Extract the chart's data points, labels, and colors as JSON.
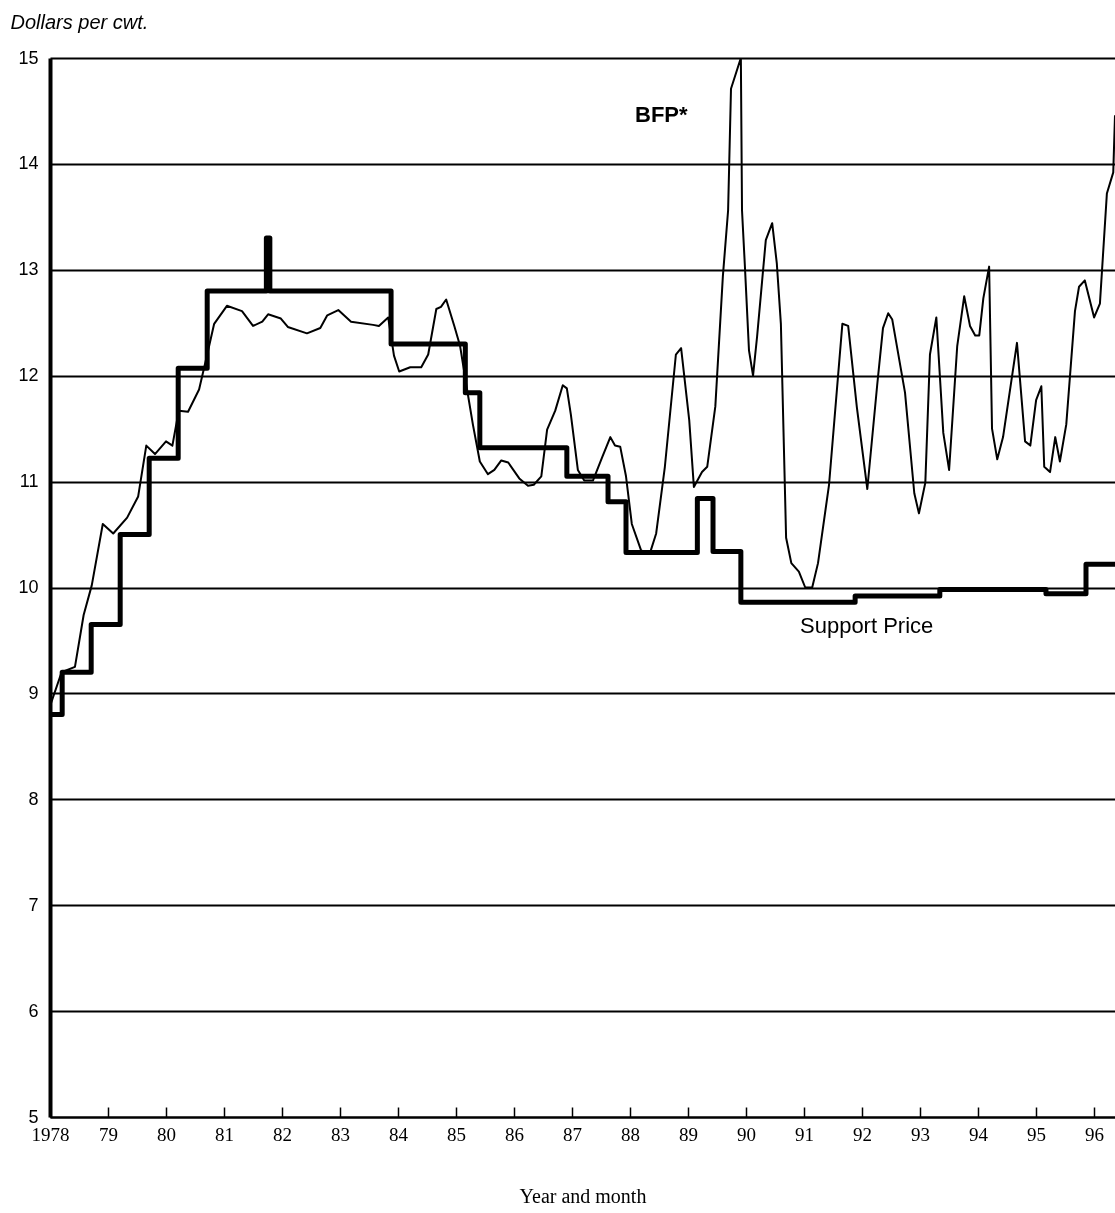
{
  "chart_data": {
    "type": "line",
    "ylabel": "Dollars per cwt.",
    "xlabel": "Year and month",
    "xlim": [
      1978,
      1996.36
    ],
    "xticks": [
      {
        "value": 1978,
        "label": "1978"
      },
      {
        "value": 1979,
        "label": "79"
      },
      {
        "value": 1980,
        "label": "80"
      },
      {
        "value": 1981,
        "label": "81"
      },
      {
        "value": 1982,
        "label": "82"
      },
      {
        "value": 1983,
        "label": "83"
      },
      {
        "value": 1984,
        "label": "84"
      },
      {
        "value": 1985,
        "label": "85"
      },
      {
        "value": 1986,
        "label": "86"
      },
      {
        "value": 1987,
        "label": "87"
      },
      {
        "value": 1988,
        "label": "88"
      },
      {
        "value": 1989,
        "label": "89"
      },
      {
        "value": 1990,
        "label": "90"
      },
      {
        "value": 1991,
        "label": "91"
      },
      {
        "value": 1992,
        "label": "92"
      },
      {
        "value": 1993,
        "label": "93"
      },
      {
        "value": 1994,
        "label": "94"
      },
      {
        "value": 1995,
        "label": "95"
      },
      {
        "value": 1996,
        "label": "96"
      }
    ],
    "ylim": [
      5,
      15
    ],
    "yticks": [
      5,
      6,
      7,
      8,
      9,
      10,
      11,
      12,
      13,
      14,
      15
    ],
    "grid": "y",
    "line_style": "solid",
    "series": [
      {
        "name": "BFP*",
        "type": "line",
        "color": "#000000",
        "x": [
          1978.0,
          1978.2,
          1978.43,
          1978.58,
          1978.72,
          1978.91,
          1979.09,
          1979.33,
          1979.52,
          1979.66,
          1979.81,
          1980.0,
          1980.11,
          1980.22,
          1980.38,
          1980.57,
          1980.71,
          1980.83,
          1981.05,
          1981.31,
          1981.5,
          1981.66,
          1981.76,
          1981.98,
          1982.1,
          1982.43,
          1982.66,
          1982.78,
          1982.97,
          1983.19,
          1983.57,
          1983.67,
          1983.83,
          1983.93,
          1984.02,
          1984.21,
          1984.4,
          1984.52,
          1984.66,
          1984.74,
          1984.83,
          1984.97,
          1985.07,
          1985.19,
          1985.29,
          1985.41,
          1985.55,
          1985.66,
          1985.78,
          1985.9,
          1986.09,
          1986.24,
          1986.34,
          1986.47,
          1986.57,
          1986.71,
          1986.84,
          1986.91,
          1986.98,
          1987.1,
          1987.21,
          1987.36,
          1987.52,
          1987.66,
          1987.74,
          1987.83,
          1987.93,
          1988.03,
          1988.19,
          1988.34,
          1988.45,
          1988.6,
          1988.79,
          1988.88,
          1989.02,
          1989.1,
          1989.24,
          1989.33,
          1989.47,
          1989.6,
          1989.69,
          1989.74,
          1989.91,
          1989.93,
          1989.98,
          1990.05,
          1990.12,
          1990.19,
          1990.34,
          1990.45,
          1990.53,
          1990.6,
          1990.69,
          1990.78,
          1990.91,
          1991.02,
          1991.14,
          1991.24,
          1991.43,
          1991.66,
          1991.76,
          1991.91,
          1992.09,
          1992.26,
          1992.36,
          1992.45,
          1992.52,
          1992.74,
          1992.9,
          1992.98,
          1993.09,
          1993.17,
          1993.28,
          1993.4,
          1993.5,
          1993.64,
          1993.76,
          1993.86,
          1993.95,
          1994.02,
          1994.09,
          1994.19,
          1994.24,
          1994.33,
          1994.43,
          1994.67,
          1994.81,
          1994.9,
          1995.0,
          1995.09,
          1995.14,
          1995.24,
          1995.33,
          1995.41,
          1995.52,
          1995.67,
          1995.74,
          1995.84,
          1996.0,
          1996.1,
          1996.22,
          1996.33,
          1996.36
        ],
        "values": [
          8.88,
          9.2,
          9.25,
          9.74,
          10.02,
          10.6,
          10.51,
          10.66,
          10.86,
          11.34,
          11.26,
          11.38,
          11.34,
          11.67,
          11.66,
          11.87,
          12.2,
          12.49,
          12.66,
          12.61,
          12.47,
          12.51,
          12.58,
          12.54,
          12.46,
          12.4,
          12.45,
          12.57,
          12.62,
          12.51,
          12.48,
          12.47,
          12.55,
          12.19,
          12.04,
          12.08,
          12.08,
          12.2,
          12.63,
          12.65,
          12.72,
          12.47,
          12.28,
          11.87,
          11.54,
          11.19,
          11.07,
          11.11,
          11.2,
          11.18,
          11.03,
          10.96,
          10.97,
          11.05,
          11.49,
          11.67,
          11.91,
          11.88,
          11.63,
          11.11,
          11.01,
          11.01,
          11.23,
          11.42,
          11.34,
          11.33,
          11.05,
          10.6,
          10.35,
          10.32,
          10.51,
          11.14,
          12.2,
          12.26,
          11.58,
          10.95,
          11.09,
          11.14,
          11.71,
          12.94,
          13.56,
          14.71,
          15.0,
          13.56,
          13.03,
          12.24,
          12.0,
          12.37,
          13.28,
          13.44,
          13.06,
          12.49,
          10.47,
          10.23,
          10.15,
          10.0,
          10.0,
          10.23,
          10.97,
          12.49,
          12.47,
          11.7,
          10.93,
          11.91,
          12.45,
          12.59,
          12.53,
          11.84,
          10.89,
          10.7,
          10.99,
          12.2,
          12.55,
          11.46,
          11.11,
          12.28,
          12.75,
          12.47,
          12.38,
          12.38,
          12.73,
          13.03,
          11.5,
          11.21,
          11.42,
          12.31,
          11.38,
          11.34,
          11.77,
          11.9,
          11.14,
          11.09,
          11.42,
          11.19,
          11.54,
          12.61,
          12.84,
          12.9,
          12.55,
          12.68,
          13.72,
          13.92,
          14.46
        ]
      },
      {
        "name": "Support Price",
        "type": "step",
        "color": "#000000",
        "x": [
          1978.0,
          1978.21,
          1978.71,
          1979.21,
          1979.71,
          1980.21,
          1980.71,
          1981.73,
          1981.79,
          1983.88,
          1985.16,
          1985.41,
          1986.91,
          1987.62,
          1987.93,
          1989.16,
          1989.43,
          1989.91,
          1991.88,
          1993.34,
          1995.17,
          1995.86,
          1996.36
        ],
        "values": [
          8.8,
          9.2,
          9.65,
          10.5,
          11.22,
          12.07,
          12.8,
          13.3,
          12.8,
          12.3,
          11.84,
          11.32,
          11.05,
          10.81,
          10.33,
          10.84,
          10.34,
          9.86,
          9.92,
          9.98,
          9.94,
          10.22,
          10.22
        ]
      }
    ]
  }
}
